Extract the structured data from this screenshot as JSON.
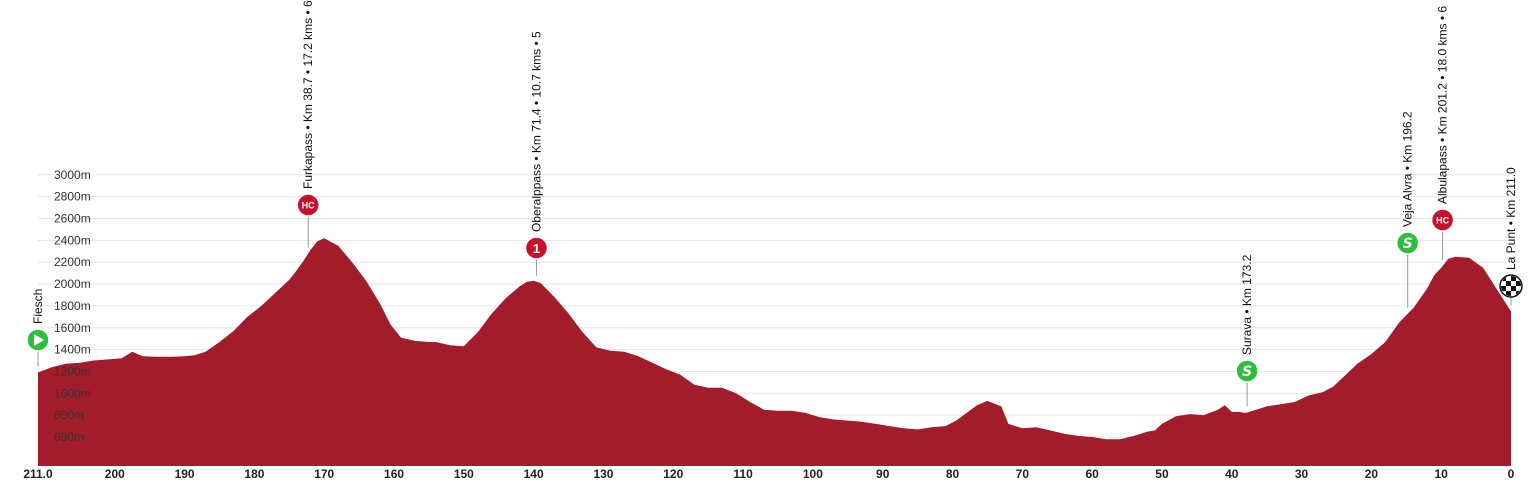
{
  "colors": {
    "profile_fill": "#A31C2B",
    "grid": "#e6e6e6",
    "badge_red": "#C8102E",
    "badge_green": "#2DBE3C",
    "finish": "#111111"
  },
  "chart_data": {
    "type": "area",
    "title": "",
    "xlabel": "",
    "ylabel": "",
    "x_direction": "reversed (km remaining)",
    "xlim": [
      211.0,
      0
    ],
    "ylim": [
      400,
      3000
    ],
    "grid": true,
    "y_ticks": [
      {
        "value": 600,
        "label": "600m"
      },
      {
        "value": 800,
        "label": "800m"
      },
      {
        "value": 1000,
        "label": "1000m"
      },
      {
        "value": 1200,
        "label": "1200m"
      },
      {
        "value": 1400,
        "label": "1400m"
      },
      {
        "value": 1600,
        "label": "1600m"
      },
      {
        "value": 1800,
        "label": "1800m"
      },
      {
        "value": 2000,
        "label": "2000m"
      },
      {
        "value": 2200,
        "label": "2200m"
      },
      {
        "value": 2400,
        "label": "2400m"
      },
      {
        "value": 2600,
        "label": "2600m"
      },
      {
        "value": 2800,
        "label": "2800m"
      },
      {
        "value": 3000,
        "label": "3000m"
      }
    ],
    "x_ticks": [
      {
        "value": 211.0,
        "label": "211.0"
      },
      {
        "value": 200,
        "label": "200"
      },
      {
        "value": 190,
        "label": "190"
      },
      {
        "value": 180,
        "label": "180"
      },
      {
        "value": 170,
        "label": "170"
      },
      {
        "value": 160,
        "label": "160"
      },
      {
        "value": 150,
        "label": "150"
      },
      {
        "value": 140,
        "label": "140"
      },
      {
        "value": 130,
        "label": "130"
      },
      {
        "value": 120,
        "label": "120"
      },
      {
        "value": 110,
        "label": "110"
      },
      {
        "value": 100,
        "label": "100"
      },
      {
        "value": 90,
        "label": "90"
      },
      {
        "value": 80,
        "label": "80"
      },
      {
        "value": 70,
        "label": "70"
      },
      {
        "value": 60,
        "label": "60"
      },
      {
        "value": 50,
        "label": "50"
      },
      {
        "value": 40,
        "label": "40"
      },
      {
        "value": 30,
        "label": "30"
      },
      {
        "value": 20,
        "label": "20"
      },
      {
        "value": 10,
        "label": "10"
      },
      {
        "value": 0,
        "label": "0"
      }
    ],
    "x": [
      211.0,
      209,
      207,
      205,
      203,
      201,
      199,
      197.5,
      196,
      194,
      192,
      190,
      188.5,
      187,
      185,
      183,
      181,
      179,
      177,
      175,
      174,
      173,
      172,
      171,
      170,
      168,
      166,
      164,
      162,
      160.5,
      159,
      157,
      155,
      154,
      152,
      150,
      148,
      146,
      144,
      142,
      141,
      140,
      139,
      137,
      135,
      133,
      131,
      129,
      127,
      125,
      123,
      121,
      119,
      117,
      115,
      113,
      111,
      109,
      107,
      105,
      103,
      101,
      99,
      97,
      95,
      93,
      91,
      89,
      87,
      85,
      83,
      81,
      79.5,
      78,
      76.5,
      75,
      73,
      72,
      70,
      68,
      66,
      64,
      62,
      60,
      58,
      56,
      54,
      52,
      51,
      50,
      48,
      46,
      44,
      42,
      41,
      40,
      39,
      38,
      36.5,
      35,
      33,
      31,
      29,
      27,
      25.5,
      24,
      22,
      20,
      18,
      16,
      14,
      12,
      11,
      10,
      9,
      8,
      6,
      4,
      2,
      0
    ],
    "elevation": [
      1190,
      1240,
      1270,
      1280,
      1300,
      1310,
      1320,
      1380,
      1340,
      1335,
      1335,
      1340,
      1350,
      1380,
      1470,
      1570,
      1700,
      1800,
      1920,
      2040,
      2120,
      2210,
      2310,
      2390,
      2420,
      2350,
      2200,
      2030,
      1820,
      1630,
      1510,
      1480,
      1470,
      1470,
      1440,
      1430,
      1560,
      1730,
      1870,
      1980,
      2020,
      2030,
      2010,
      1880,
      1730,
      1560,
      1420,
      1390,
      1380,
      1340,
      1280,
      1220,
      1170,
      1080,
      1050,
      1050,
      1000,
      920,
      850,
      840,
      840,
      820,
      780,
      760,
      750,
      740,
      720,
      700,
      680,
      670,
      690,
      700,
      750,
      820,
      890,
      930,
      880,
      720,
      680,
      690,
      660,
      630,
      610,
      600,
      580,
      580,
      610,
      650,
      660,
      720,
      790,
      810,
      800,
      850,
      890,
      830,
      830,
      820,
      850,
      880,
      900,
      920,
      980,
      1010,
      1060,
      1150,
      1270,
      1360,
      1470,
      1650,
      1780,
      1960,
      2080,
      2150,
      2230,
      2250,
      2240,
      2150,
      1950,
      1750
    ]
  },
  "markers": [
    {
      "id": "fiesch",
      "km": 211.0,
      "label": "Fiesch",
      "badge": "start"
    },
    {
      "id": "furkapass",
      "km": 172.3,
      "label": "Furkapass • Km 38.7 • 17.2 kms • 6",
      "badge": "hc",
      "badge_text": "HC"
    },
    {
      "id": "oberalppass",
      "km": 139.6,
      "label": "Oberalppass • Km 71.4 • 10.7 kms • 5",
      "badge": "cat",
      "badge_text": "1"
    },
    {
      "id": "surava",
      "km": 37.8,
      "label": "Surava • Km 173.2",
      "badge": "sprint",
      "badge_text": "S"
    },
    {
      "id": "veja-alvra",
      "km": 14.8,
      "label": "Veja Alvra • Km 196.2",
      "badge": "sprint",
      "badge_text": "S"
    },
    {
      "id": "albulapass",
      "km": 9.8,
      "label": "Albulapass • Km 201.2 • 18.0 kms • 6",
      "badge": "hc",
      "badge_text": "HC"
    },
    {
      "id": "la-punt",
      "km": 0,
      "label": "La Punt • Km 211.0",
      "badge": "finish"
    }
  ]
}
